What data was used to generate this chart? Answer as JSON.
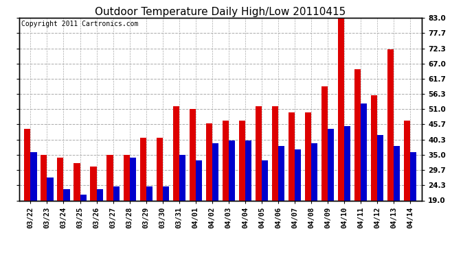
{
  "title": "Outdoor Temperature Daily High/Low 20110415",
  "copyright": "Copyright 2011 Cartronics.com",
  "categories": [
    "03/22",
    "03/23",
    "03/24",
    "03/25",
    "03/26",
    "03/27",
    "03/28",
    "03/29",
    "03/30",
    "03/31",
    "04/01",
    "04/02",
    "04/03",
    "04/04",
    "04/05",
    "04/06",
    "04/07",
    "04/08",
    "04/09",
    "04/10",
    "04/11",
    "04/12",
    "04/13",
    "04/14"
  ],
  "highs": [
    44,
    35,
    34,
    32,
    31,
    35,
    35,
    41,
    41,
    52,
    51,
    46,
    47,
    47,
    52,
    52,
    50,
    50,
    59,
    83,
    65,
    56,
    72,
    47
  ],
  "lows": [
    36,
    27,
    23,
    21,
    23,
    24,
    34,
    24,
    24,
    35,
    33,
    39,
    40,
    40,
    33,
    38,
    37,
    39,
    44,
    45,
    53,
    42,
    38,
    36
  ],
  "high_color": "#dd0000",
  "low_color": "#0000cc",
  "bg_color": "#ffffff",
  "grid_color": "#aaaaaa",
  "yticks": [
    19.0,
    24.3,
    29.7,
    35.0,
    40.3,
    45.7,
    51.0,
    56.3,
    61.7,
    67.0,
    72.3,
    77.7,
    83.0
  ],
  "ymin": 19.0,
  "ymax": 83.0,
  "title_fontsize": 11,
  "copyright_fontsize": 7,
  "tick_fontsize": 7.5,
  "bar_width": 0.38
}
